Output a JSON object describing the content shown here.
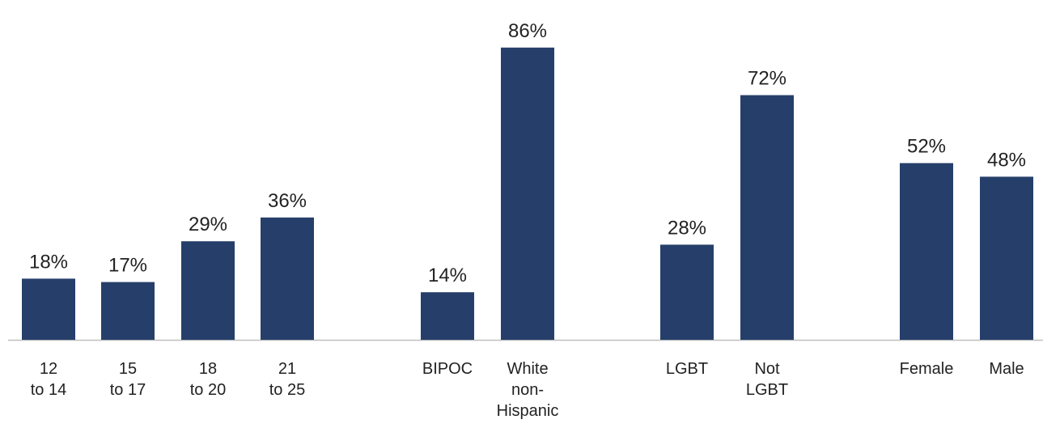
{
  "chart_data": {
    "type": "bar",
    "title": "",
    "xlabel": "",
    "ylabel": "",
    "ylim": [
      0,
      100
    ],
    "grid": false,
    "legend": "none",
    "colors": {
      "bar": "#263f6a",
      "axis": "#bfbfbf",
      "text": "#222222"
    },
    "categories": [
      "12 to 14",
      "15 to 17",
      "18 to 20",
      "21 to 25",
      "BIPOC",
      "White non-Hispanic",
      "LGBT",
      "Not LGBT",
      "Female",
      "Male"
    ],
    "tick_labels": [
      [
        "12",
        "to 14"
      ],
      [
        "15",
        "to 17"
      ],
      [
        "18",
        "to 20"
      ],
      [
        "21",
        "to 25"
      ],
      [
        "BIPOC"
      ],
      [
        "White",
        "non-",
        "Hispanic"
      ],
      [
        "LGBT"
      ],
      [
        "Not",
        "LGBT"
      ],
      [
        "Female"
      ],
      [
        "Male"
      ]
    ],
    "values": [
      18,
      17,
      29,
      36,
      14,
      86,
      28,
      72,
      52,
      48
    ],
    "data_labels": [
      "18%",
      "17%",
      "29%",
      "36%",
      "14%",
      "86%",
      "28%",
      "72%",
      "52%",
      "48%"
    ]
  }
}
